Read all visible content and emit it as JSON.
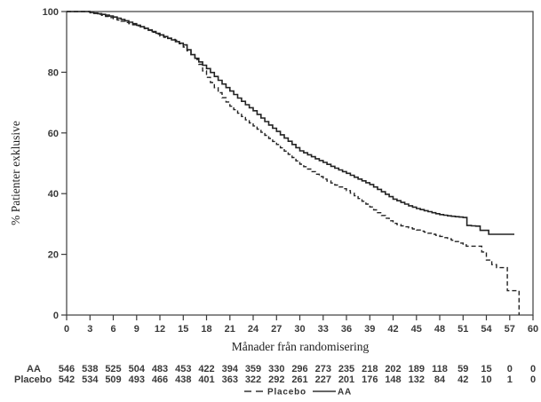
{
  "figure": {
    "background": "#ffffff",
    "line_color": "#222222",
    "frame_color": "#4a4a4a"
  },
  "chart_data": {
    "type": "line",
    "subtype": "kaplan-meier-step",
    "title": "",
    "xlabel": "Månader från randomisering",
    "ylabel": "% Patienter exklusive",
    "xlim": [
      0,
      60
    ],
    "ylim": [
      0,
      100
    ],
    "x_ticks": [
      0,
      3,
      6,
      9,
      12,
      15,
      18,
      21,
      24,
      27,
      30,
      33,
      36,
      39,
      42,
      45,
      48,
      51,
      54,
      57,
      60
    ],
    "y_ticks": [
      0,
      20,
      40,
      60,
      80,
      100
    ],
    "grid": false,
    "legend_position": "bottom-center",
    "legend": [
      {
        "label": "Placebo",
        "style": "dashed"
      },
      {
        "label": "AA",
        "style": "solid"
      }
    ],
    "series": [
      {
        "name": "AA",
        "style": "solid",
        "color": "#222222",
        "points": [
          [
            0,
            100
          ],
          [
            2.4,
            100
          ],
          [
            3,
            99.7
          ],
          [
            4,
            99.3
          ],
          [
            5,
            98.8
          ],
          [
            6,
            98.2
          ],
          [
            7,
            97.4
          ],
          [
            8,
            96.5
          ],
          [
            9,
            95.5
          ],
          [
            10,
            94.5
          ],
          [
            11,
            93.4
          ],
          [
            12,
            92.3
          ],
          [
            13,
            91.2
          ],
          [
            14,
            90.1
          ],
          [
            15,
            89.0
          ],
          [
            16,
            85.8
          ],
          [
            17,
            83.4
          ],
          [
            18,
            81.2
          ],
          [
            19,
            78.6
          ],
          [
            20,
            76.1
          ],
          [
            21,
            73.8
          ],
          [
            22,
            71.5
          ],
          [
            23,
            69.3
          ],
          [
            24,
            67.3
          ],
          [
            25,
            64.9
          ],
          [
            26,
            62.6
          ],
          [
            27,
            60.5
          ],
          [
            28,
            58.3
          ],
          [
            29,
            56.2
          ],
          [
            30,
            54.1
          ],
          [
            31,
            52.8
          ],
          [
            32,
            51.5
          ],
          [
            33,
            50.3
          ],
          [
            34,
            49.0
          ],
          [
            35,
            47.8
          ],
          [
            36,
            46.7
          ],
          [
            37,
            45.4
          ],
          [
            38,
            44.2
          ],
          [
            39,
            43.0
          ],
          [
            40,
            41.4
          ],
          [
            41,
            39.8
          ],
          [
            42,
            38.2
          ],
          [
            43,
            37.1
          ],
          [
            44,
            36.0
          ],
          [
            45,
            35.1
          ],
          [
            46,
            34.4
          ],
          [
            47,
            33.7
          ],
          [
            48,
            33.1
          ],
          [
            49,
            32.7
          ],
          [
            50,
            32.4
          ],
          [
            51.5,
            32.0
          ],
          [
            51.5,
            29.5
          ],
          [
            53.2,
            29.2
          ],
          [
            53.2,
            27.9
          ],
          [
            54.3,
            27.9
          ],
          [
            54.3,
            26.6
          ],
          [
            57.6,
            26.6
          ]
        ]
      },
      {
        "name": "Placebo",
        "style": "dashed",
        "color": "#222222",
        "points": [
          [
            0,
            100
          ],
          [
            2.4,
            100
          ],
          [
            3,
            99.6
          ],
          [
            4,
            99.1
          ],
          [
            5,
            98.4
          ],
          [
            6,
            97.6
          ],
          [
            7,
            96.8
          ],
          [
            8,
            96.0
          ],
          [
            9,
            95.3
          ],
          [
            10,
            94.4
          ],
          [
            11,
            93.2
          ],
          [
            12,
            91.9
          ],
          [
            13,
            91.1
          ],
          [
            14,
            90.5
          ],
          [
            15,
            88.3
          ],
          [
            16,
            85.8
          ],
          [
            17,
            82.6
          ],
          [
            18,
            78.3
          ],
          [
            19,
            74.9
          ],
          [
            20,
            71.6
          ],
          [
            21,
            68.8
          ],
          [
            22,
            66.5
          ],
          [
            23,
            64.3
          ],
          [
            24,
            62.3
          ],
          [
            25,
            60.2
          ],
          [
            26,
            58.2
          ],
          [
            27,
            56.2
          ],
          [
            28,
            54.0
          ],
          [
            29,
            51.9
          ],
          [
            30,
            49.7
          ],
          [
            31,
            48.1
          ],
          [
            32,
            46.4
          ],
          [
            33,
            44.8
          ],
          [
            34,
            43.5
          ],
          [
            35,
            42.2
          ],
          [
            36,
            41.0
          ],
          [
            37,
            39.3
          ],
          [
            38,
            37.5
          ],
          [
            39,
            35.6
          ],
          [
            40,
            33.7
          ],
          [
            41,
            31.9
          ],
          [
            42,
            30.2
          ],
          [
            43,
            29.4
          ],
          [
            44,
            28.7
          ],
          [
            45,
            28.0
          ],
          [
            46,
            27.3
          ],
          [
            47,
            26.6
          ],
          [
            48,
            25.9
          ],
          [
            49,
            25.1
          ],
          [
            50,
            24.2
          ],
          [
            51,
            23.2
          ],
          [
            51.4,
            22.7
          ],
          [
            53.4,
            22.7
          ],
          [
            53.4,
            20.8
          ],
          [
            54.0,
            20.8
          ],
          [
            54.0,
            18.1
          ],
          [
            54.7,
            18.1
          ],
          [
            54.7,
            16.6
          ],
          [
            55.3,
            16.6
          ],
          [
            55.3,
            15.6
          ],
          [
            56.7,
            15.6
          ],
          [
            56.7,
            8.0
          ],
          [
            58.2,
            8.0
          ],
          [
            58.2,
            0
          ]
        ]
      }
    ],
    "at_risk_table": {
      "rows": [
        {
          "label": "AA",
          "values": [
            546,
            538,
            525,
            504,
            483,
            453,
            422,
            394,
            359,
            330,
            296,
            273,
            235,
            218,
            202,
            189,
            118,
            59,
            15,
            0,
            0
          ]
        },
        {
          "label": "Placebo",
          "values": [
            542,
            534,
            509,
            493,
            466,
            438,
            401,
            363,
            322,
            292,
            261,
            227,
            201,
            176,
            148,
            132,
            84,
            42,
            10,
            1,
            0
          ]
        }
      ]
    }
  }
}
